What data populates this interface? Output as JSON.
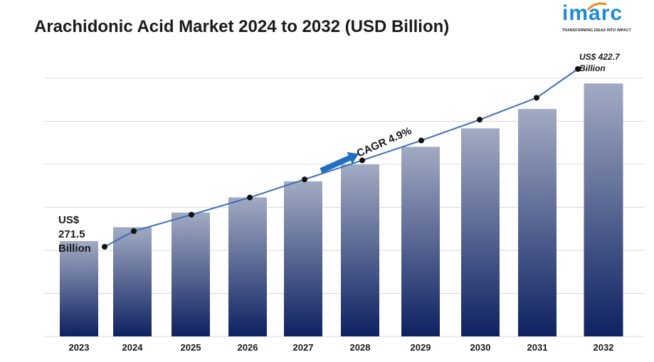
{
  "title": "Arachidonic Acid Market 2024 to 2032 (USD Billion)",
  "logo": {
    "word": "imarc",
    "tagline": "TRANSFORMING IDEAS INTO IMPACT"
  },
  "chart_data": {
    "type": "bar",
    "categories": [
      "2023",
      "2024",
      "2025",
      "2026",
      "2027",
      "2028",
      "2029",
      "2030",
      "2031",
      "2032"
    ],
    "values": [
      271.5,
      284.8,
      298.8,
      313.4,
      328.8,
      345.0,
      361.9,
      379.6,
      398.2,
      422.7
    ],
    "line_values": [
      271.5,
      284.8,
      298.8,
      313.4,
      328.8,
      345.0,
      361.9,
      379.6,
      398.2,
      422.7
    ],
    "ylim": [
      180,
      440
    ],
    "grid": true,
    "bar_color_top": "#a2abc3",
    "bar_color_bottom": "#0e2161",
    "line_color": "#3c6fb5",
    "arrow_color": "#1f6fc0",
    "annotations": {
      "first": [
        "US$",
        "271.5",
        "Billion"
      ],
      "last": [
        "US$ 422.7",
        "Billion"
      ],
      "cagr": "CAGR 4.9%"
    }
  }
}
